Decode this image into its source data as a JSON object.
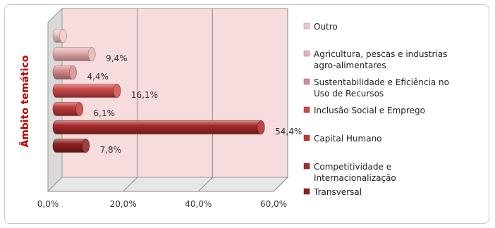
{
  "chart_data": {
    "type": "bar",
    "orientation": "horizontal",
    "style": "3d-cylinder",
    "ylabel": "Âmbito temático",
    "xlim": [
      0,
      60
    ],
    "x_ticks": [
      "0,0%",
      "20,0%",
      "40,0%",
      "60,0%"
    ],
    "grid": true,
    "legend_position": "right",
    "categories": [
      "Outro",
      "Agricultura, pescas e industrias agro-alimentares",
      "Sustentabilidade e Eficiência no Uso de Recursos",
      "Inclusão Social e Emprego",
      "Capital Humano",
      "Competitividade e Internacionalização",
      "Transversal"
    ],
    "legend_lines": [
      [
        "Outro"
      ],
      [
        "Agricultura, pescas e industrias",
        "agro-alimentares"
      ],
      [
        "Sustentabilidade e Eficiência no",
        "Uso de Recursos"
      ],
      [
        "Inclusão Social e Emprego"
      ],
      [
        "Capital Humano"
      ],
      [
        "Competitividade e",
        "Internacionalização"
      ],
      [
        "Transversal"
      ]
    ],
    "values": [
      1.8,
      9.4,
      4.4,
      16.1,
      6.1,
      54.4,
      7.8
    ],
    "data_labels": [
      "",
      "9,4%",
      "4,4%",
      "16,1%",
      "6,1%",
      "54,4%",
      "7,8%"
    ],
    "colors": [
      "#efc6c6",
      "#e8b0b0",
      "#d98a8a",
      "#cc4a4a",
      "#c03a3a",
      "#a82a2a",
      "#8e2020"
    ]
  }
}
